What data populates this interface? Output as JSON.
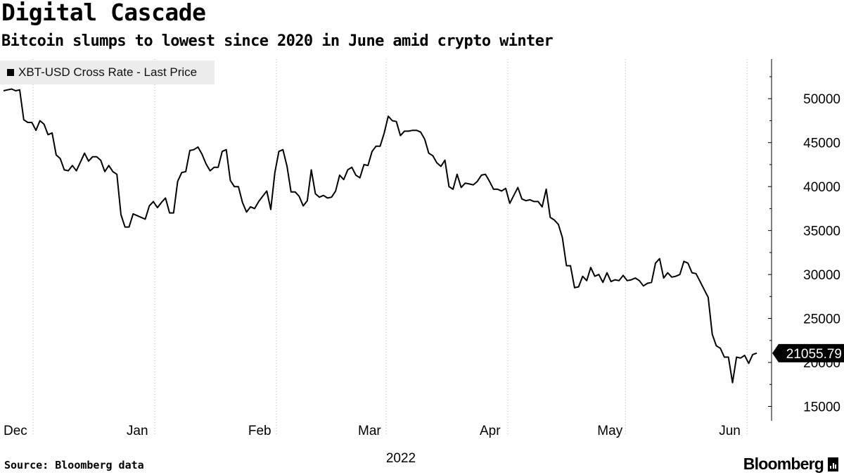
{
  "header": {
    "title": "Digital Cascade",
    "subtitle": "Bitcoin slumps to lowest since 2020 in June amid crypto winter"
  },
  "footer": {
    "source": "Source: Bloomberg data",
    "brand": "Bloomberg",
    "brand_icon": "bloomberg-terminal-icon"
  },
  "colors": {
    "line": "#000000",
    "legend_bg": "#ececec",
    "grid": "#b8b8b8"
  },
  "chart_data": {
    "type": "line",
    "legend": {
      "position": "top-left",
      "entries": [
        "XBT-USD Cross Rate - Last Price"
      ]
    },
    "series": [
      {
        "name": "XBT-USD Cross Rate - Last Price",
        "values": [
          50900,
          51000,
          51100,
          50900,
          51000,
          47600,
          47300,
          47300,
          46400,
          47500,
          47100,
          45900,
          46100,
          43600,
          43200,
          41900,
          41800,
          42400,
          41800,
          42800,
          43800,
          42900,
          43400,
          43400,
          43000,
          41700,
          42400,
          41700,
          41400,
          36800,
          35400,
          35400,
          36900,
          36700,
          36500,
          36300,
          37800,
          38300,
          37600,
          38200,
          38700,
          37000,
          37000,
          40600,
          41600,
          41700,
          44100,
          44200,
          44500,
          43700,
          42600,
          41800,
          42200,
          42200,
          44000,
          44200,
          40700,
          40000,
          40000,
          38200,
          37100,
          37700,
          37500,
          38300,
          38900,
          39500,
          37400,
          41600,
          44000,
          44200,
          42300,
          39400,
          39400,
          38900,
          37800,
          38400,
          41900,
          39200,
          38800,
          39000,
          38700,
          38800,
          39500,
          41300,
          40800,
          41900,
          42200,
          41300,
          41000,
          42500,
          42400,
          44000,
          44600,
          44600,
          46100,
          48000,
          47500,
          47400,
          45800,
          46300,
          46300,
          46400,
          46400,
          46200,
          45400,
          43800,
          43500,
          42700,
          42300,
          43000,
          40000,
          39700,
          41400,
          39900,
          40400,
          40300,
          40200,
          40600,
          41300,
          41400,
          40600,
          39700,
          39700,
          39500,
          39800,
          38100,
          39000,
          39900,
          38600,
          38400,
          38500,
          38300,
          38300,
          37700,
          39700,
          36500,
          36200,
          35700,
          34200,
          31000,
          31000,
          28500,
          28600,
          29800,
          29300,
          30800,
          29800,
          30000,
          29100,
          30200,
          29200,
          29400,
          29300,
          29900,
          29300,
          29400,
          29600,
          29300,
          28700,
          29000,
          29100,
          31300,
          31800,
          29600,
          30200,
          29700,
          29800,
          30000,
          31500,
          31300,
          30200,
          30100,
          29200,
          28300,
          27400,
          23200,
          21900,
          21600,
          20600,
          20600,
          17700,
          20600,
          20500,
          20800,
          19900,
          20900,
          21055.79
        ]
      }
    ],
    "last_value_label": "21055.79",
    "x_labels": [
      "Dec",
      "Jan",
      "Feb",
      "Mar",
      "Apr",
      "May",
      "Jun"
    ],
    "x_year_label": "2022",
    "x_label_positions": [
      0,
      31,
      62,
      90,
      121,
      151,
      182
    ],
    "y_ticks": [
      15000,
      20000,
      25000,
      30000,
      35000,
      40000,
      45000,
      50000
    ],
    "ylim": [
      14000,
      54500
    ],
    "xlim": [
      0,
      192
    ],
    "y_axis_position": "right",
    "grid": "vertical-dotted",
    "title": "Digital Cascade",
    "subtitle": "Bitcoin slumps to lowest since 2020 in June amid crypto winter",
    "xlabel": "",
    "ylabel": ""
  }
}
